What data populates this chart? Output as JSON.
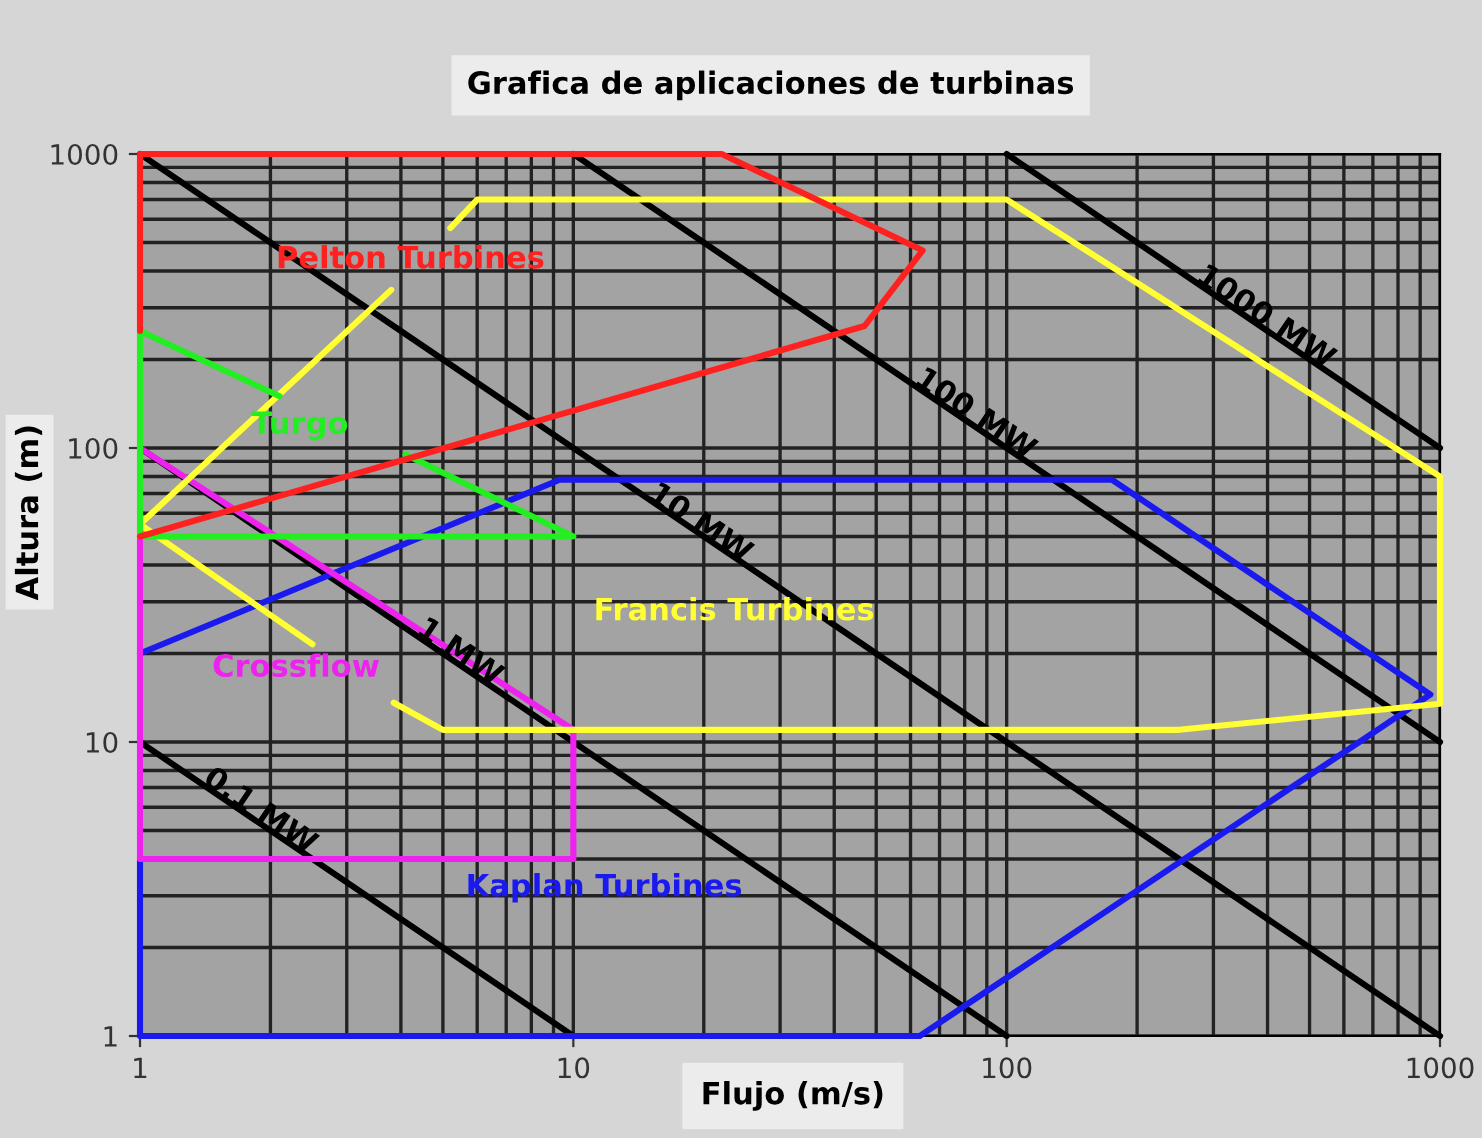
{
  "chart_data": {
    "type": "line",
    "title": "Grafica de aplicaciones de turbinas",
    "xlabel": "Flujo (m/s)",
    "ylabel": "Altura (m)",
    "log": "xy",
    "xlim": [
      1,
      1000
    ],
    "ylim": [
      1,
      1000
    ],
    "xticks": [
      1,
      10,
      100,
      1000
    ],
    "yticks": [
      1,
      10,
      100,
      1000
    ],
    "grid": true,
    "legend": false,
    "marker": "none",
    "line_style": "solid",
    "series": [
      {
        "name": "0.1 MW",
        "color": "#000000",
        "x": [
          1,
          10
        ],
        "values": [
          10,
          1
        ]
      },
      {
        "name": "1 MW",
        "color": "#000000",
        "x": [
          1,
          100
        ],
        "values": [
          100,
          1
        ]
      },
      {
        "name": "10 MW",
        "color": "#000000",
        "x": [
          1,
          1000
        ],
        "values": [
          1000,
          1
        ]
      },
      {
        "name": "100 MW",
        "color": "#000000",
        "x": [
          10,
          1000
        ],
        "values": [
          1000,
          10
        ]
      },
      {
        "name": "1000 MW",
        "color": "#000000",
        "x": [
          100,
          1000
        ],
        "values": [
          1000,
          100
        ]
      },
      {
        "name": "Kaplan Turbines",
        "color": "#1a1aee",
        "x": [
          1,
          9.3,
          175,
          950,
          63,
          1,
          1
        ],
        "values": [
          20,
          78,
          78,
          14.5,
          1,
          1,
          4
        ]
      },
      {
        "name": "Crossflow",
        "color": "#ee22ee",
        "x": [
          1,
          10,
          10,
          1,
          1
        ],
        "values": [
          100,
          11,
          4,
          4,
          50
        ]
      },
      {
        "name": "Francis Turbines",
        "color": "#ffff33",
        "x": [
          1,
          3.8,
          4.4,
          5.2,
          6,
          100,
          1000,
          1000,
          250,
          5,
          3.85,
          3.1,
          2.5,
          1
        ],
        "values": [
          55,
          345,
          null,
          560,
          700,
          700,
          80,
          13.5,
          11,
          11,
          13.6,
          null,
          21.5,
          55
        ]
      },
      {
        "name": "Turgo",
        "color": "#22ee22",
        "x": [
          1,
          2.1,
          3,
          4.1,
          10,
          1,
          1
        ],
        "values": [
          250,
          150,
          null,
          95,
          50,
          50,
          250
        ]
      },
      {
        "name": "Pelton Turbines",
        "color": "#ff2020",
        "x": [
          1,
          1,
          22,
          64,
          47,
          1
        ],
        "values": [
          250,
          1000,
          1000,
          470,
          260,
          50
        ]
      }
    ]
  }
}
